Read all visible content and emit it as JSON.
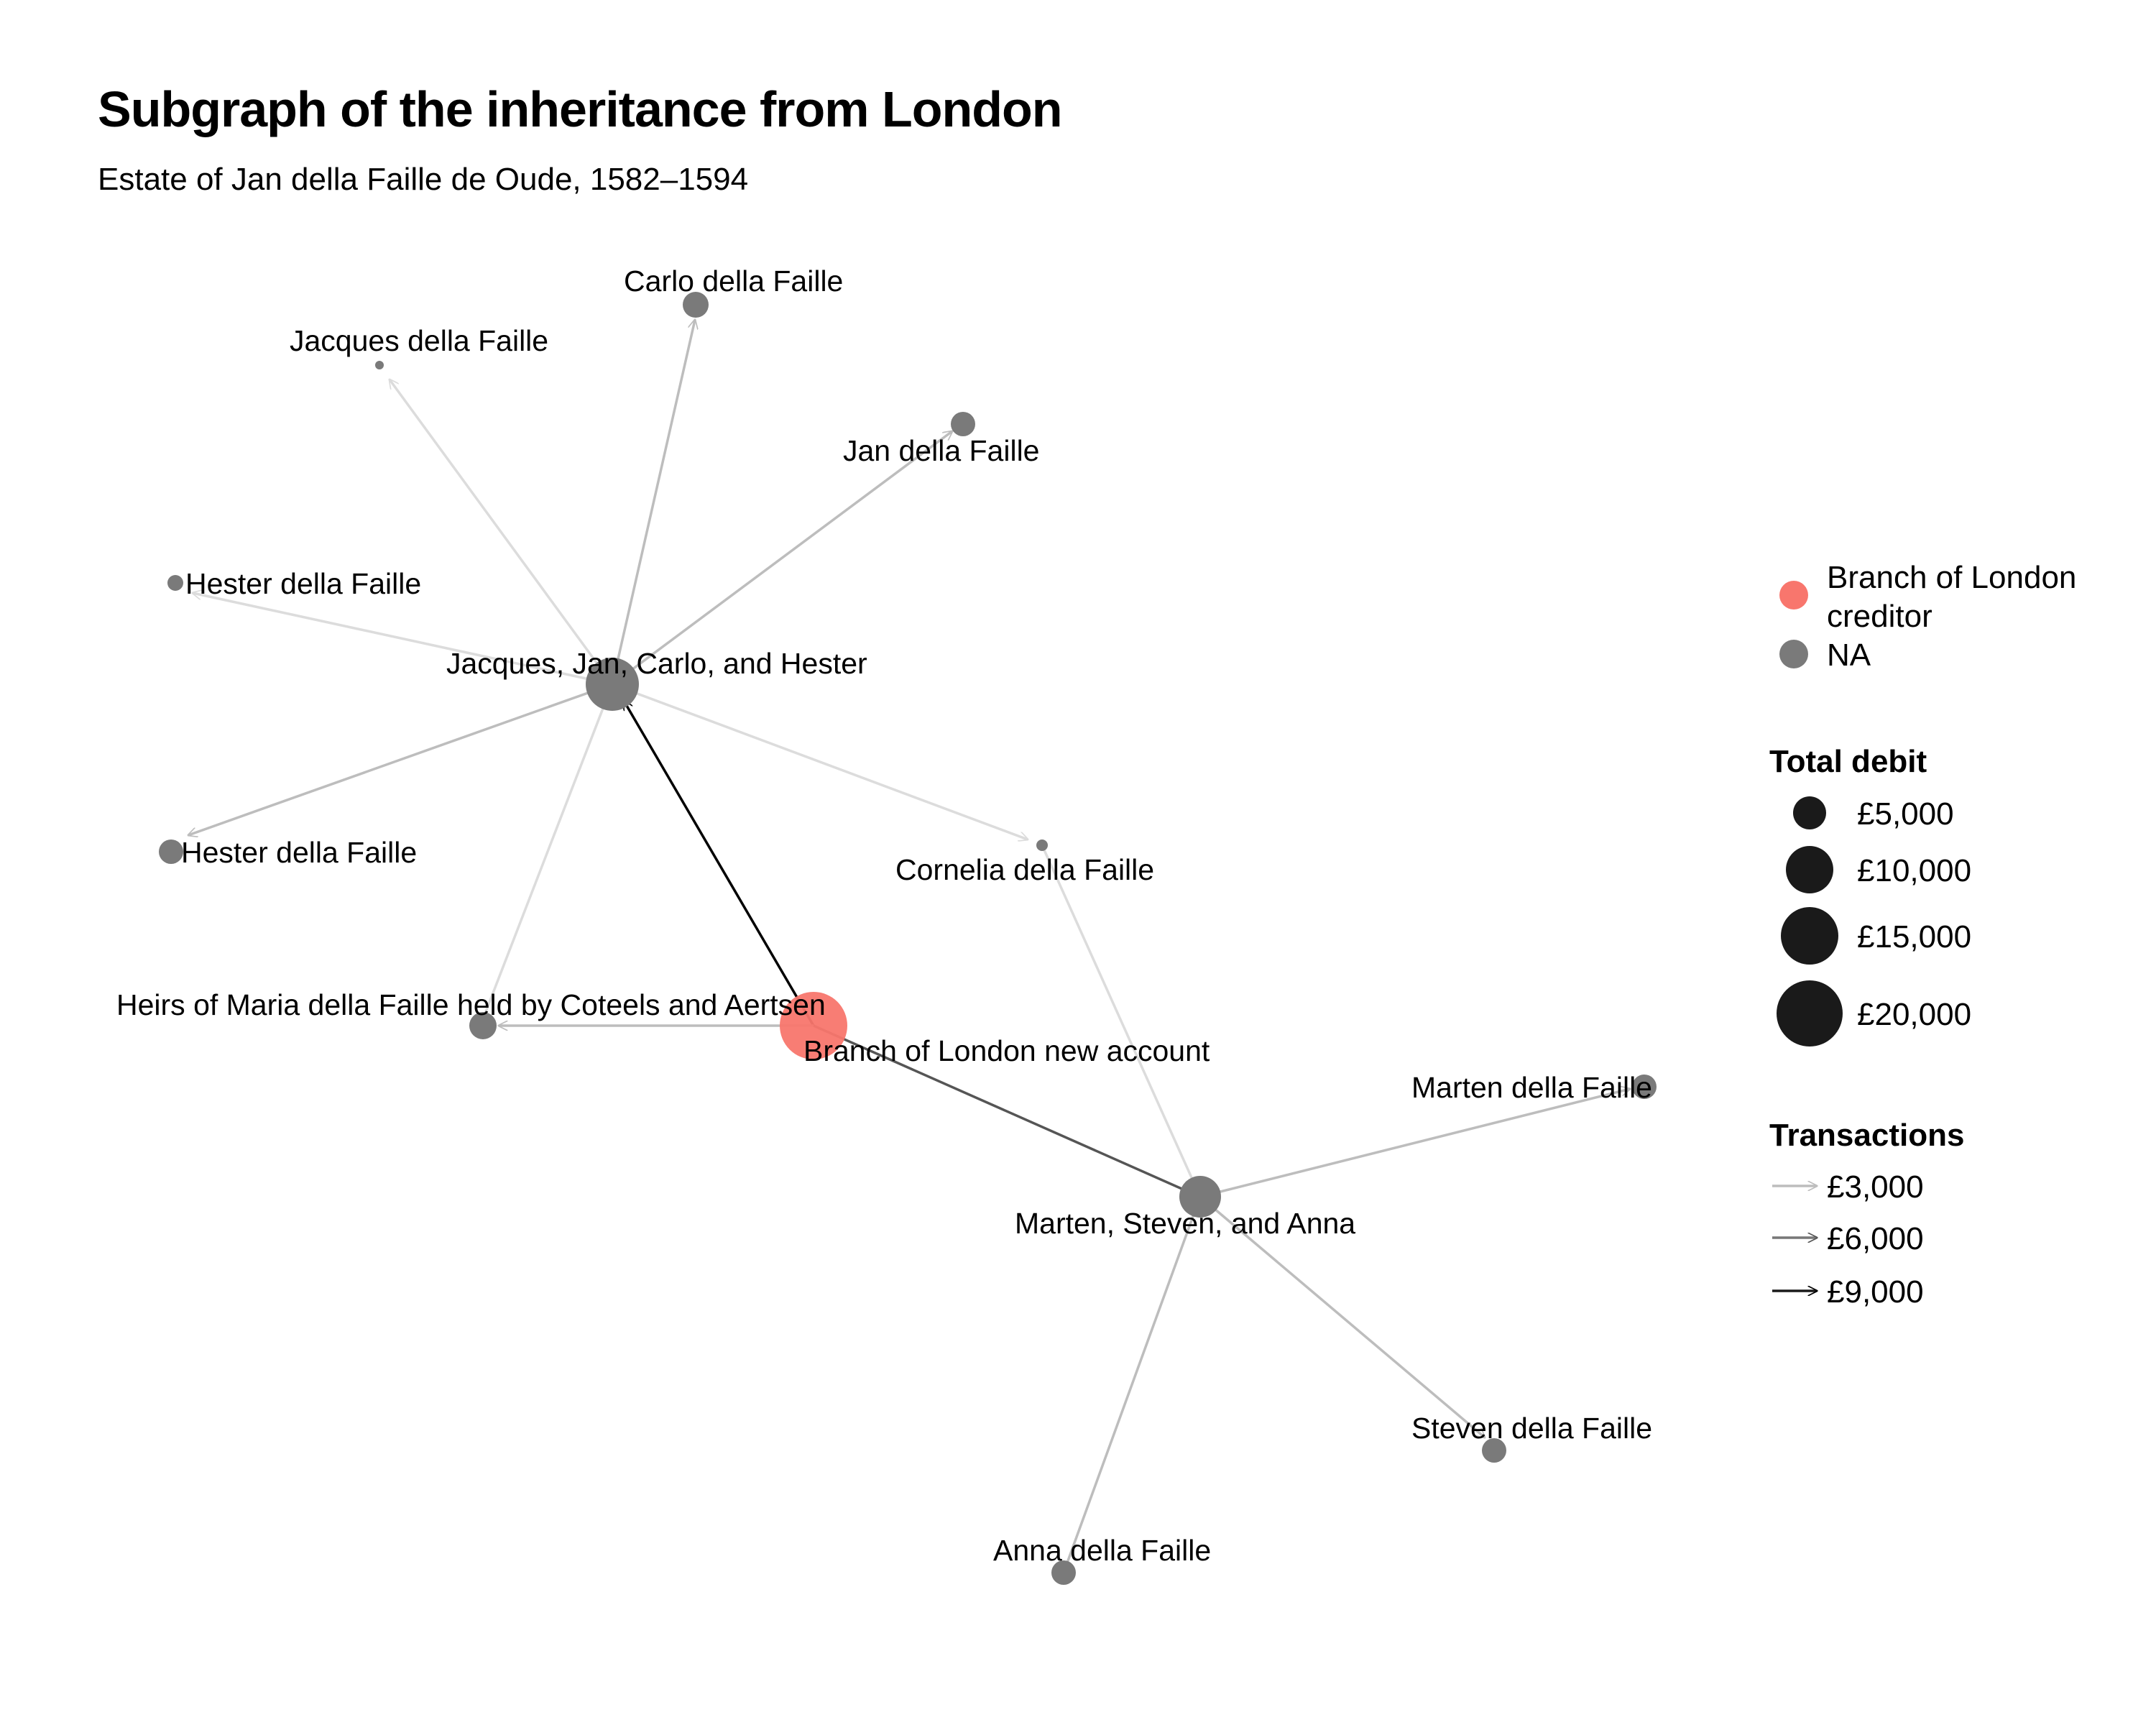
{
  "title": "Subgraph of the inheritance from London",
  "subtitle": "Estate of Jan della Faille de Oude, 1582–1594",
  "colors": {
    "creditor": "#F8766D",
    "na": "#7A7A7A",
    "edge_dark": "#000000"
  },
  "nodes": [
    {
      "id": "london",
      "label": "Branch of London new account",
      "group": "creditor"
    },
    {
      "id": "jjch",
      "label": "Jacques, Jan, Carlo, and Hester",
      "group": "na"
    },
    {
      "id": "msa",
      "label": "Marten, Steven, and Anna",
      "group": "na"
    },
    {
      "id": "heirs",
      "label": "Heirs of Maria della Faille held by Coteels and Aertsen",
      "group": "na"
    },
    {
      "id": "carlo",
      "label": "Carlo della Faille",
      "group": "na"
    },
    {
      "id": "jacques",
      "label": "Jacques della Faille",
      "group": "na"
    },
    {
      "id": "jan",
      "label": "Jan della Faille",
      "group": "na"
    },
    {
      "id": "hester1",
      "label": "Hester della Faille",
      "group": "na"
    },
    {
      "id": "hester2",
      "label": "Hester della Faille",
      "group": "na"
    },
    {
      "id": "cornelia",
      "label": "Cornelia della Faille",
      "group": "na"
    },
    {
      "id": "marten",
      "label": "Marten della Faille",
      "group": "na"
    },
    {
      "id": "steven",
      "label": "Steven della Faille",
      "group": "na"
    },
    {
      "id": "anna",
      "label": "Anna della Faille",
      "group": "na"
    }
  ],
  "legend": {
    "color_items": [
      {
        "label_lines": [
          "Branch of London",
          "creditor"
        ],
        "color": "#F8766D"
      },
      {
        "label_lines": [
          "NA"
        ],
        "color": "#7A7A7A"
      }
    ],
    "size_title": "Total debit",
    "size_items": [
      "£5,000",
      "£10,000",
      "£15,000",
      "£20,000"
    ],
    "edge_title": "Transactions",
    "edge_items": [
      "£3,000",
      "£6,000",
      "£9,000"
    ]
  }
}
